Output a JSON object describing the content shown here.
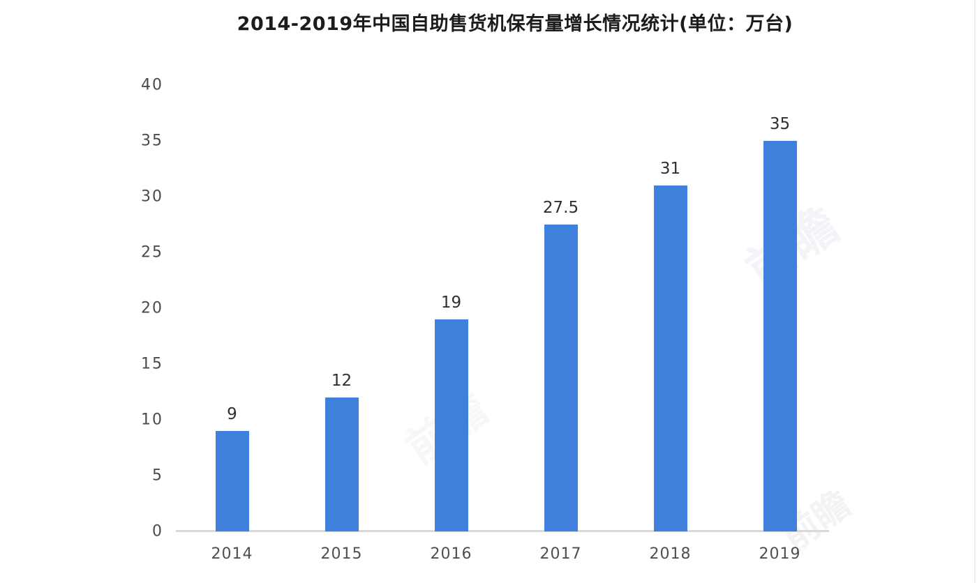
{
  "chart_data": {
    "type": "bar",
    "title": "2014-2019年中国自助售货机保有量增长情况统计(单位：万台)",
    "categories": [
      "2014",
      "2015",
      "2016",
      "2017",
      "2018",
      "2019"
    ],
    "values": [
      9,
      12,
      19,
      27.5,
      31,
      35
    ],
    "data_labels": [
      "9",
      "12",
      "19",
      "27.5",
      "31",
      "35"
    ],
    "xlabel": "",
    "ylabel": "",
    "ylim": [
      0,
      40
    ],
    "yticks": [
      0,
      5,
      10,
      15,
      20,
      25,
      30,
      35,
      40
    ],
    "grid": false,
    "legend": "none",
    "bar_color": "#4080dd",
    "axis_line_color": "#d9d9d9"
  },
  "colors": {
    "title_text": "#1c1c1c",
    "tick_label_text": "#4a4a4a",
    "value_label_text": "#2f2f2f",
    "background": "#ffffff"
  },
  "watermark": {
    "text": "前瞻"
  }
}
